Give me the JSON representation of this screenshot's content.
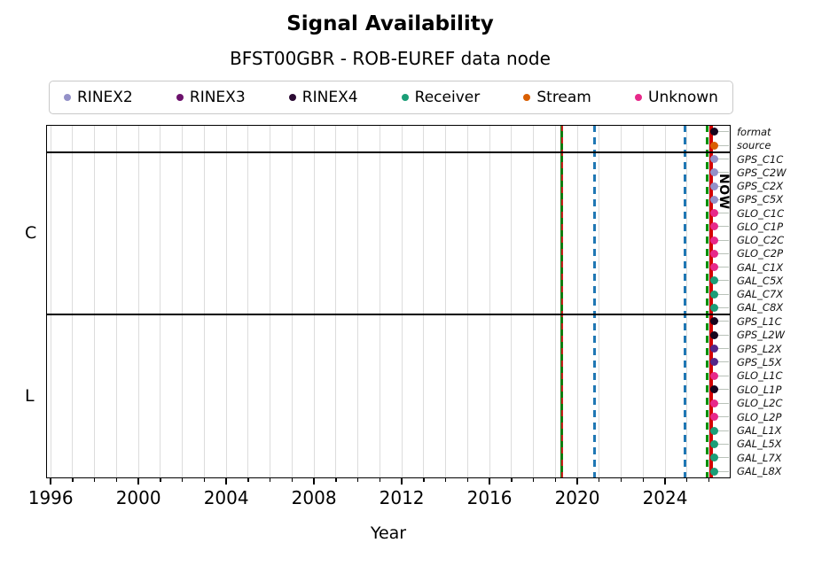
{
  "title": "Signal Availability",
  "subtitle": "BFST00GBR - ROB-EUREF data node",
  "legend": {
    "items": [
      {
        "label": "RINEX2",
        "color": "#9491c8"
      },
      {
        "label": "RINEX3",
        "color": "#6c116c"
      },
      {
        "label": "RINEX4",
        "color": "#2b0a33"
      },
      {
        "label": "Receiver",
        "color": "#1b9e77"
      },
      {
        "label": "Stream",
        "color": "#d95f02"
      },
      {
        "label": "Unknown",
        "color": "#e7298a"
      }
    ]
  },
  "chart_data": {
    "type": "scatter",
    "title": "Signal Availability",
    "subtitle": "BFST00GBR - ROB-EUREF data node",
    "xlabel": "Year",
    "legend_position": "top",
    "x_axis": {
      "min": 1995.79,
      "max": 2026.99,
      "major_ticks": [
        1996,
        2000,
        2004,
        2008,
        2012,
        2016,
        2020,
        2024
      ],
      "minor_tick_step": 1,
      "grid": true,
      "gridline_color": "#dcdcdc"
    },
    "event_lines": [
      {
        "year": 2019.3,
        "style": "solid",
        "color": "#0f7d0f",
        "width": 3,
        "overlay_dash_color": "#cc2020"
      },
      {
        "year": 2020.8,
        "style": "dashed",
        "color": "#1f77b4",
        "width": 3
      },
      {
        "year": 2024.9,
        "style": "dashed",
        "color": "#1f77b4",
        "width": 3
      },
      {
        "year": 2025.9,
        "style": "dashed",
        "color": "#089000",
        "width": 3
      }
    ],
    "now_marker": {
      "year": 2026.1,
      "label": "NOW",
      "color": "#d40000",
      "width": 4
    },
    "latest_points_year": 2026.25,
    "groups": [
      {
        "label": "",
        "rows": [
          {
            "label": "format",
            "dot_color": "#16061e"
          },
          {
            "label": "source",
            "dot_color": "#d95f02"
          }
        ]
      },
      {
        "label": "C",
        "rows": [
          {
            "label": "GPS_C1C",
            "dot_color": "#9491c8"
          },
          {
            "label": "GPS_C2W",
            "dot_color": "#9491c8"
          },
          {
            "label": "GPS_C2X",
            "dot_color": "#9491c8"
          },
          {
            "label": "GPS_C5X",
            "dot_color": "#9491c8"
          },
          {
            "label": "GLO_C1C",
            "dot_color": "#e7298a"
          },
          {
            "label": "GLO_C1P",
            "dot_color": "#e7298a"
          },
          {
            "label": "GLO_C2C",
            "dot_color": "#e7298a"
          },
          {
            "label": "GLO_C2P",
            "dot_color": "#e7298a"
          },
          {
            "label": "GAL_C1X",
            "dot_color": "#e7298a"
          },
          {
            "label": "GAL_C5X",
            "dot_color": "#1b9e77"
          },
          {
            "label": "GAL_C7X",
            "dot_color": "#1b9e77"
          },
          {
            "label": "GAL_C8X",
            "dot_color": "#1b9e77"
          }
        ]
      },
      {
        "label": "L",
        "rows": [
          {
            "label": "GPS_L1C",
            "dot_color": "#16061e"
          },
          {
            "label": "GPS_L2W",
            "dot_color": "#16061e"
          },
          {
            "label": "GPS_L2X",
            "dot_color": "#542788"
          },
          {
            "label": "GPS_L5X",
            "dot_color": "#542788"
          },
          {
            "label": "GLO_L1C",
            "dot_color": "#e7298a"
          },
          {
            "label": "GLO_L1P",
            "dot_color": "#16061e"
          },
          {
            "label": "GLO_L2C",
            "dot_color": "#e7298a"
          },
          {
            "label": "GLO_L2P",
            "dot_color": "#e7298a"
          },
          {
            "label": "GAL_L1X",
            "dot_color": "#1b9e77"
          },
          {
            "label": "GAL_L5X",
            "dot_color": "#1b9e77"
          },
          {
            "label": "GAL_L7X",
            "dot_color": "#1b9e77"
          },
          {
            "label": "GAL_L8X",
            "dot_color": "#1b9e77"
          }
        ]
      }
    ]
  }
}
